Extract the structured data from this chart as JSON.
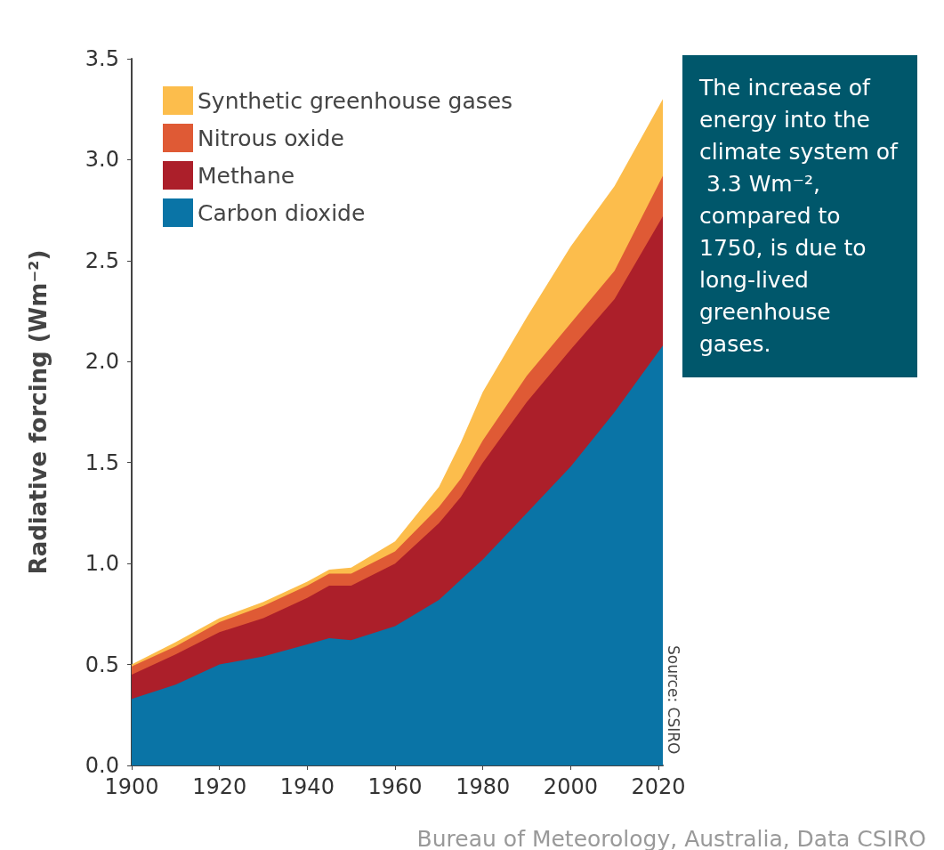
{
  "chart_data": {
    "type": "area",
    "stacked": true,
    "ylabel": "Radiative forcing (Wm⁻²)",
    "x": [
      1900,
      1910,
      1920,
      1930,
      1940,
      1945,
      1950,
      1960,
      1970,
      1975,
      1980,
      1990,
      2000,
      2010,
      2021
    ],
    "series": [
      {
        "name": "Carbon dioxide",
        "color": "#0a74a6",
        "values": [
          0.33,
          0.4,
          0.5,
          0.54,
          0.6,
          0.63,
          0.62,
          0.69,
          0.82,
          0.92,
          1.02,
          1.25,
          1.48,
          1.75,
          2.08
        ]
      },
      {
        "name": "Methane",
        "color": "#ac1f2a",
        "values": [
          0.12,
          0.15,
          0.16,
          0.19,
          0.23,
          0.26,
          0.27,
          0.31,
          0.38,
          0.41,
          0.48,
          0.55,
          0.58,
          0.56,
          0.64
        ]
      },
      {
        "name": "Nitrous oxide",
        "color": "#df5a35",
        "values": [
          0.04,
          0.04,
          0.05,
          0.06,
          0.06,
          0.06,
          0.06,
          0.06,
          0.08,
          0.09,
          0.11,
          0.13,
          0.13,
          0.14,
          0.2
        ]
      },
      {
        "name": "Synthetic greenhouse gases",
        "color": "#fcbd4c",
        "values": [
          0.01,
          0.02,
          0.02,
          0.02,
          0.02,
          0.02,
          0.03,
          0.05,
          0.1,
          0.18,
          0.24,
          0.29,
          0.38,
          0.42,
          0.38
        ]
      }
    ],
    "xlim": [
      1900,
      2021
    ],
    "xticks": [
      1900,
      1920,
      1940,
      1960,
      1980,
      2000,
      2020
    ],
    "ylim": [
      0,
      3.5
    ],
    "yticks": [
      {
        "value": 0,
        "label": "0.0"
      },
      0.5,
      {
        "value": 1,
        "label": "1.0"
      },
      1.5,
      {
        "value": 2,
        "label": "2.0"
      },
      2.5,
      {
        "value": 3,
        "label": "3.0"
      },
      3.5
    ],
    "grid": false,
    "legend": "top left",
    "annotations": [
      "The increase of energy into the climate system of 3.3 Wm⁻², compared to 1750, is due to long-lived greenhouse gases.",
      "Source: CSIRO",
      "Bureau of Meteorology, Australia, Data CSIRO"
    ]
  }
}
